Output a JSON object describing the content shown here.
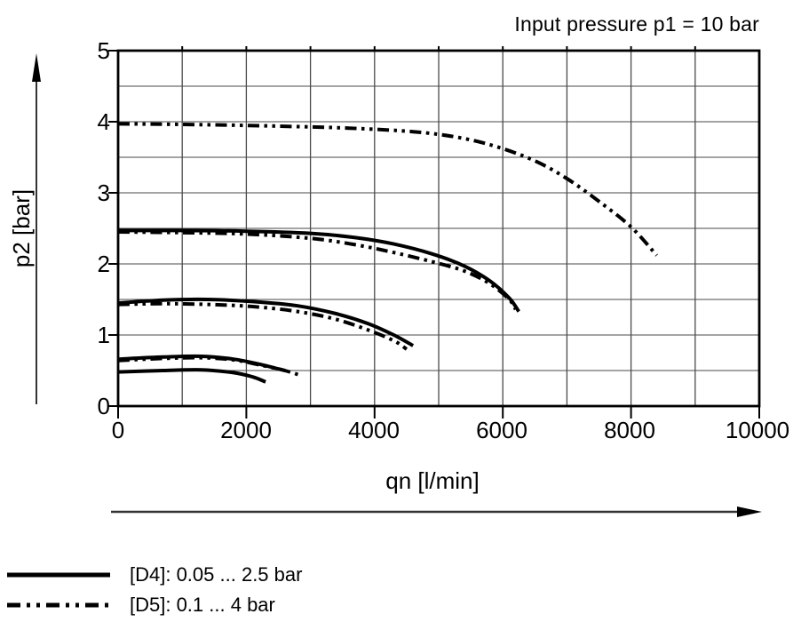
{
  "title": "Input pressure p1 = 10 bar",
  "y_axis": {
    "label": "p2 [bar]",
    "tick_labels": [
      "0",
      "1",
      "2",
      "3",
      "4",
      "5"
    ]
  },
  "x_axis": {
    "label": "qn [l/min]",
    "tick_labels": [
      "0",
      "2000",
      "4000",
      "6000",
      "8000",
      "10000"
    ]
  },
  "legend": {
    "items": [
      {
        "line_style": "solid",
        "label": "[D4]: 0.05 ... 2.5 bar"
      },
      {
        "line_style": "dash-dot-dot",
        "label": "[D5]: 0.1 ... 4 bar"
      }
    ]
  },
  "colors": {
    "curve": "#000000",
    "grid": "#4a4a4a",
    "frame": "#000000",
    "arrow": "#333333"
  },
  "chart_data": {
    "type": "line",
    "title": "Input pressure p1 = 10 bar",
    "xlabel": "qn [l/min]",
    "ylabel": "p2 [bar]",
    "xlim": [
      0,
      10000
    ],
    "ylim": [
      0,
      5
    ],
    "x_gridline_step": 1000,
    "y_gridline_step": 0.5,
    "x_tick_label_step": 2000,
    "y_tick_label_step": 1,
    "grid": true,
    "legend_position": "below-left",
    "series": [
      {
        "name": "D5 outlet 4 bar",
        "variant": "D5",
        "style": "dash-dot-dot",
        "points": [
          [
            0,
            3.97
          ],
          [
            1200,
            3.96
          ],
          [
            2400,
            3.94
          ],
          [
            3600,
            3.91
          ],
          [
            4600,
            3.86
          ],
          [
            5300,
            3.78
          ],
          [
            5900,
            3.65
          ],
          [
            6500,
            3.45
          ],
          [
            7000,
            3.2
          ],
          [
            7500,
            2.88
          ],
          [
            8000,
            2.52
          ],
          [
            8400,
            2.12
          ]
        ]
      },
      {
        "name": "D4 outlet 2.5 bar",
        "variant": "D4",
        "style": "solid",
        "points": [
          [
            0,
            2.47
          ],
          [
            1000,
            2.47
          ],
          [
            2000,
            2.46
          ],
          [
            3000,
            2.43
          ],
          [
            3700,
            2.37
          ],
          [
            4300,
            2.28
          ],
          [
            4900,
            2.14
          ],
          [
            5400,
            1.97
          ],
          [
            5800,
            1.76
          ],
          [
            6100,
            1.52
          ],
          [
            6250,
            1.33
          ]
        ]
      },
      {
        "name": "D5 outlet 2.5 bar",
        "variant": "D5",
        "style": "dash-dot-dot",
        "points": [
          [
            0,
            2.45
          ],
          [
            1000,
            2.44
          ],
          [
            2000,
            2.42
          ],
          [
            3000,
            2.36
          ],
          [
            3700,
            2.27
          ],
          [
            4300,
            2.16
          ],
          [
            4900,
            2.03
          ],
          [
            5400,
            1.9
          ],
          [
            5800,
            1.72
          ],
          [
            6100,
            1.5
          ],
          [
            6200,
            1.36
          ]
        ]
      },
      {
        "name": "D4 outlet 1.5 bar",
        "variant": "D4",
        "style": "solid",
        "points": [
          [
            0,
            1.45
          ],
          [
            700,
            1.49
          ],
          [
            1400,
            1.5
          ],
          [
            2100,
            1.47
          ],
          [
            2800,
            1.41
          ],
          [
            3400,
            1.3
          ],
          [
            3900,
            1.16
          ],
          [
            4300,
            1.0
          ],
          [
            4600,
            0.85
          ]
        ]
      },
      {
        "name": "D5 outlet 1.5 bar",
        "variant": "D5",
        "style": "dash-dot-dot",
        "points": [
          [
            0,
            1.43
          ],
          [
            700,
            1.44
          ],
          [
            1400,
            1.43
          ],
          [
            2100,
            1.4
          ],
          [
            2800,
            1.33
          ],
          [
            3400,
            1.22
          ],
          [
            3900,
            1.07
          ],
          [
            4300,
            0.92
          ],
          [
            4500,
            0.8
          ]
        ]
      },
      {
        "name": "D4 outlet 0.65 bar",
        "variant": "D4",
        "style": "solid",
        "points": [
          [
            0,
            0.66
          ],
          [
            700,
            0.69
          ],
          [
            1300,
            0.7
          ],
          [
            1800,
            0.66
          ],
          [
            2200,
            0.59
          ],
          [
            2600,
            0.5
          ]
        ]
      },
      {
        "name": "D5 outlet 0.65 bar",
        "variant": "D5",
        "style": "dash-dot-dot",
        "points": [
          [
            0,
            0.64
          ],
          [
            700,
            0.67
          ],
          [
            1300,
            0.68
          ],
          [
            1800,
            0.65
          ],
          [
            2200,
            0.58
          ],
          [
            2600,
            0.5
          ],
          [
            2850,
            0.43
          ]
        ]
      },
      {
        "name": "D4 outlet 0.5 bar",
        "variant": "D4",
        "style": "solid",
        "points": [
          [
            0,
            0.48
          ],
          [
            700,
            0.5
          ],
          [
            1300,
            0.51
          ],
          [
            1800,
            0.47
          ],
          [
            2100,
            0.41
          ],
          [
            2300,
            0.34
          ]
        ]
      }
    ]
  }
}
